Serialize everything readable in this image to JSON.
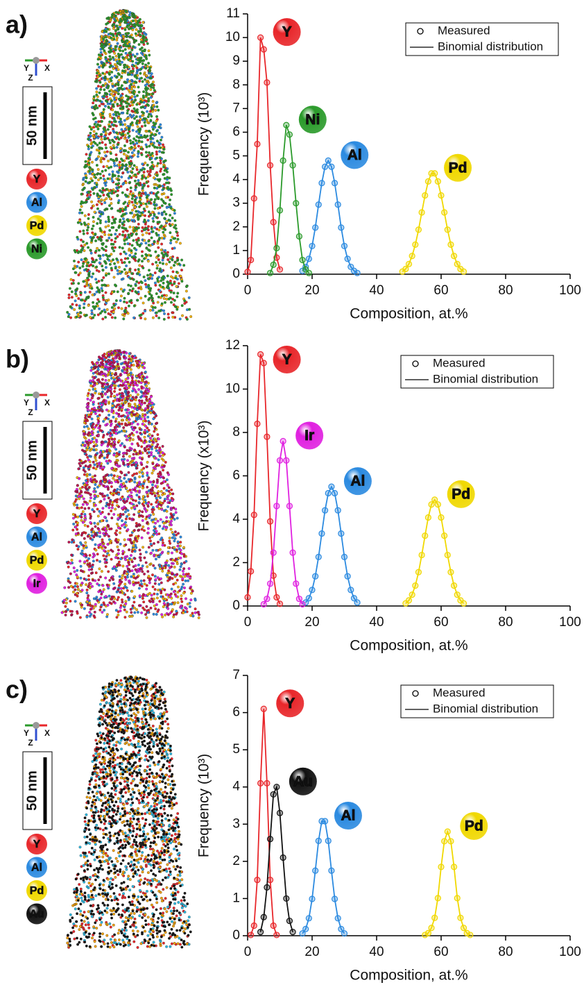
{
  "chart_data": [
    {
      "type": "line",
      "panel": "a)",
      "scale_bar": "50 nm",
      "axes_triad": [
        "Y",
        "X",
        "Z"
      ],
      "legend": [
        "Measured",
        "Binomial distribution"
      ],
      "ylabel": "Frequency (10³)",
      "xlabel": "Composition, at.%",
      "xlim": [
        0,
        100
      ],
      "xticks": [
        0,
        20,
        40,
        60,
        80,
        100
      ],
      "ylim": [
        0,
        11
      ],
      "yticks": [
        0,
        1,
        2,
        3,
        4,
        5,
        6,
        7,
        8,
        9,
        10,
        11
      ],
      "series": [
        {
          "name": "Y",
          "color": "#e8262a",
          "x": [
            0,
            1,
            2,
            3,
            4,
            5,
            6,
            7,
            8,
            9,
            10
          ],
          "values": [
            0.1,
            0.6,
            3.2,
            5.5,
            10.0,
            9.5,
            8.1,
            4.6,
            2.2,
            0.7,
            0.2
          ]
        },
        {
          "name": "Al",
          "color": "#2b8ae0",
          "x": [
            17,
            18,
            19,
            20,
            21,
            22,
            23,
            24,
            25,
            26,
            27,
            28,
            29,
            30,
            31,
            32,
            33,
            34
          ],
          "values": [
            0.14,
            0.31,
            0.65,
            1.19,
            1.97,
            2.94,
            3.85,
            4.54,
            4.8,
            4.54,
            3.85,
            2.94,
            1.97,
            1.19,
            0.65,
            0.31,
            0.14,
            0.05
          ]
        },
        {
          "name": "Pd",
          "color": "#f0d800",
          "x": [
            48,
            49,
            50,
            51,
            52,
            53,
            54,
            55,
            56,
            57,
            58,
            59,
            60,
            61,
            62,
            63,
            64,
            65,
            66,
            67
          ],
          "values": [
            0.11,
            0.22,
            0.43,
            0.77,
            1.25,
            1.88,
            2.61,
            3.33,
            3.92,
            4.26,
            4.26,
            3.92,
            3.33,
            2.61,
            1.88,
            1.25,
            0.77,
            0.43,
            0.22,
            0.11
          ]
        },
        {
          "name": "Ni",
          "color": "#2a9a2a",
          "x": [
            7,
            8,
            9,
            10,
            11,
            12,
            13,
            14,
            15,
            16,
            17,
            18,
            19
          ],
          "values": [
            0.05,
            0.4,
            1.1,
            2.7,
            4.8,
            6.3,
            5.9,
            4.6,
            3.0,
            1.6,
            0.6,
            0.2,
            0.05
          ]
        }
      ]
    },
    {
      "type": "line",
      "panel": "b)",
      "scale_bar": "50 nm",
      "axes_triad": [
        "Y",
        "X",
        "Z"
      ],
      "legend": [
        "Measured",
        "Binomial distribution"
      ],
      "ylabel": "Frequency (x10³)",
      "xlabel": "Composition, at.%",
      "xlim": [
        0,
        100
      ],
      "xticks": [
        0,
        20,
        40,
        60,
        80,
        100
      ],
      "ylim": [
        0,
        12
      ],
      "yticks": [
        0,
        2,
        4,
        6,
        8,
        10,
        12
      ],
      "series": [
        {
          "name": "Y",
          "color": "#e8262a",
          "x": [
            0,
            1,
            2,
            3,
            4,
            5,
            6,
            7,
            8,
            9,
            10
          ],
          "values": [
            0.4,
            1.6,
            4.2,
            8.4,
            11.6,
            11.2,
            7.8,
            3.9,
            1.4,
            0.4,
            0.1
          ]
        },
        {
          "name": "Al",
          "color": "#2b8ae0",
          "x": [
            18,
            19,
            20,
            21,
            22,
            23,
            24,
            25,
            26,
            27,
            28,
            29,
            30,
            31,
            32,
            33,
            34
          ],
          "values": [
            0.16,
            0.36,
            0.74,
            1.37,
            2.26,
            3.34,
            4.41,
            5.2,
            5.5,
            5.2,
            4.41,
            3.34,
            2.26,
            1.37,
            0.74,
            0.36,
            0.16
          ]
        },
        {
          "name": "Pd",
          "color": "#f0d800",
          "x": [
            49,
            50,
            51,
            52,
            53,
            54,
            55,
            56,
            57,
            58,
            59,
            60,
            61,
            62,
            63,
            64,
            65,
            66,
            67
          ],
          "values": [
            0.12,
            0.26,
            0.52,
            0.94,
            1.56,
            2.35,
            3.24,
            4.08,
            4.68,
            4.9,
            4.68,
            4.08,
            3.24,
            2.35,
            1.56,
            0.94,
            0.52,
            0.26,
            0.12
          ]
        },
        {
          "name": "Ir",
          "color": "#e020e0",
          "x": [
            5,
            6,
            7,
            8,
            9,
            10,
            11,
            12,
            13,
            14,
            15,
            16,
            17
          ],
          "values": [
            0.08,
            0.33,
            1.03,
            2.46,
            4.61,
            6.71,
            7.6,
            6.71,
            4.61,
            2.46,
            1.03,
            0.33,
            0.08
          ]
        }
      ]
    },
    {
      "type": "line",
      "panel": "c)",
      "scale_bar": "50 nm",
      "axes_triad": [
        "Y",
        "X",
        "Z"
      ],
      "legend": [
        "Measured",
        "Binomial distribution"
      ],
      "ylabel": "Frequency (10³)",
      "xlabel": "Composition, at.%",
      "xlim": [
        0,
        100
      ],
      "xticks": [
        0,
        20,
        40,
        60,
        80,
        100
      ],
      "ylim": [
        0,
        7
      ],
      "yticks": [
        0,
        1,
        2,
        3,
        4,
        5,
        6,
        7
      ],
      "series": [
        {
          "name": "Y",
          "color": "#e8262a",
          "x": [
            1,
            2,
            3,
            4,
            5,
            6,
            7,
            8,
            9
          ],
          "values": [
            0.02,
            0.27,
            1.5,
            4.1,
            6.1,
            4.1,
            1.5,
            0.27,
            0.02
          ]
        },
        {
          "name": "Al",
          "color": "#2b8ae0",
          "x": [
            17,
            18,
            19,
            20,
            21,
            22,
            23,
            24,
            25,
            26,
            27,
            28,
            29,
            30
          ],
          "values": [
            0.06,
            0.18,
            0.47,
            0.99,
            1.75,
            2.55,
            3.08,
            3.08,
            2.55,
            1.75,
            0.99,
            0.47,
            0.18,
            0.06
          ]
        },
        {
          "name": "Pd",
          "color": "#f0d800",
          "x": [
            55,
            56,
            57,
            58,
            59,
            60,
            61,
            62,
            63,
            64,
            65,
            66,
            67,
            68,
            69
          ],
          "values": [
            0.02,
            0.07,
            0.21,
            0.48,
            1.01,
            1.85,
            2.54,
            2.8,
            2.54,
            1.85,
            1.01,
            0.48,
            0.21,
            0.07,
            0.02
          ]
        },
        {
          "name": "Au",
          "color": "#111111",
          "x": [
            4,
            5,
            6,
            7,
            8,
            9,
            10,
            11,
            12,
            13,
            14
          ],
          "values": [
            0.1,
            0.5,
            1.3,
            2.6,
            3.8,
            4.0,
            3.3,
            2.1,
            1.0,
            0.4,
            0.1
          ]
        }
      ]
    }
  ]
}
